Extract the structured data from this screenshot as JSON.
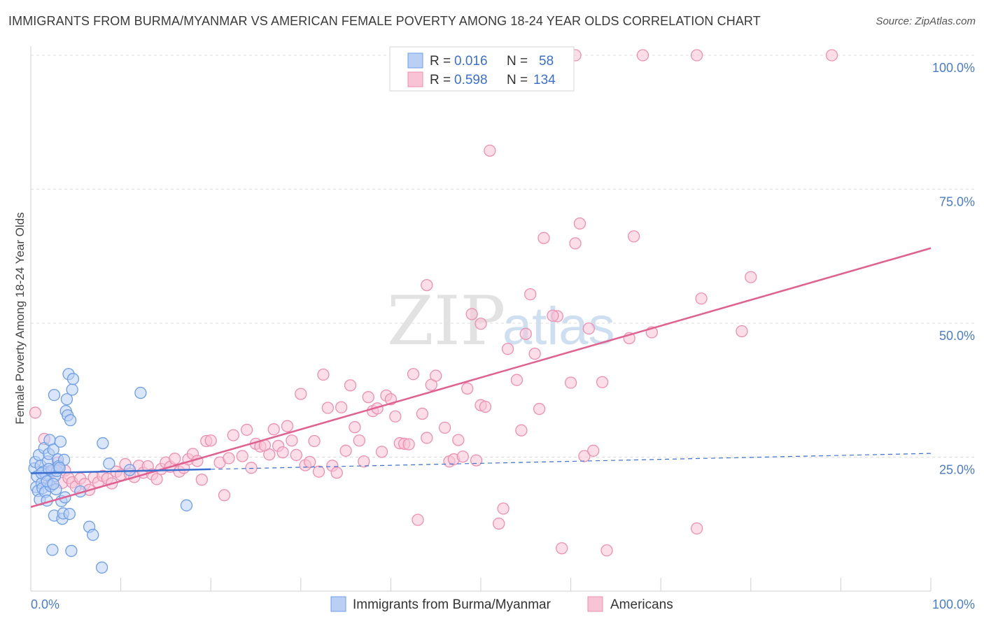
{
  "title": "IMMIGRANTS FROM BURMA/MYANMAR VS AMERICAN FEMALE POVERTY AMONG 18-24 YEAR OLDS CORRELATION CHART",
  "source": "Source: ZipAtlas.com",
  "watermark": {
    "zip": "ZIP",
    "atlas": "atlas"
  },
  "colors": {
    "blue": "#6d9ee8",
    "blue_fill": "#b9d0f4",
    "blue_line": "#3a6fd0",
    "pink": "#ee8fb0",
    "pink_fill": "#f7c3d5",
    "pink_line": "#e0608f",
    "tick_text": "#4a7cc9",
    "grid": "#dedede"
  },
  "chart_data": {
    "type": "scatter",
    "title": "IMMIGRANTS FROM BURMA/MYANMAR VS AMERICAN FEMALE POVERTY AMONG 18-24 YEAR OLDS CORRELATION CHART",
    "xlabel": "",
    "ylabel": "Female Poverty Among 18-24 Year Olds",
    "xlim": [
      0,
      100
    ],
    "ylim": [
      0,
      100
    ],
    "x_ticks": [
      "0.0%",
      "100.0%"
    ],
    "y_ticks": [
      {
        "value": 25,
        "label": "25.0%"
      },
      {
        "value": 50,
        "label": "50.0%"
      },
      {
        "value": 75,
        "label": "75.0%"
      },
      {
        "value": 100,
        "label": "100.0%"
      }
    ],
    "legend": {
      "position": "top-center",
      "entries": [
        {
          "r_label": "R =",
          "r": "0.016",
          "n_label": "N =",
          "n": "58"
        },
        {
          "r_label": "R =",
          "r": "0.598",
          "n_label": "N =",
          "n": "134"
        }
      ]
    },
    "series": [
      {
        "name": "Immigrants from Burma/Myanmar",
        "color": "blue",
        "trend": {
          "x0": 0,
          "y0": 22.0,
          "x1": 100,
          "y1": 25.7,
          "solid_until": 20
        },
        "points": [
          [
            0.4,
            22.9
          ],
          [
            0.6,
            19.4
          ],
          [
            0.5,
            24.1
          ],
          [
            0.7,
            21.4
          ],
          [
            0.8,
            18.7
          ],
          [
            0.9,
            25.4
          ],
          [
            1.0,
            17.1
          ],
          [
            1.1,
            23.4
          ],
          [
            1.2,
            20.1
          ],
          [
            1.3,
            19.2
          ],
          [
            1.4,
            22.3
          ],
          [
            1.5,
            26.7
          ],
          [
            1.6,
            18.5
          ],
          [
            1.7,
            21.7
          ],
          [
            1.8,
            16.9
          ],
          [
            1.9,
            24.2
          ],
          [
            2.0,
            25.6
          ],
          [
            2.1,
            28.2
          ],
          [
            2.2,
            19.6
          ],
          [
            2.3,
            22.5
          ],
          [
            2.4,
            7.7
          ],
          [
            2.5,
            26.4
          ],
          [
            2.6,
            14.1
          ],
          [
            2.7,
            21.5
          ],
          [
            2.8,
            19.0
          ],
          [
            2.9,
            22.4
          ],
          [
            2.6,
            36.6
          ],
          [
            3.0,
            24.6
          ],
          [
            3.1,
            23.3
          ],
          [
            3.3,
            27.9
          ],
          [
            3.4,
            16.8
          ],
          [
            3.5,
            13.5
          ],
          [
            3.6,
            14.5
          ],
          [
            3.7,
            24.5
          ],
          [
            3.8,
            17.5
          ],
          [
            3.9,
            33.6
          ],
          [
            4.0,
            35.8
          ],
          [
            4.1,
            32.8
          ],
          [
            4.2,
            40.5
          ],
          [
            4.3,
            14.4
          ],
          [
            4.4,
            31.9
          ],
          [
            4.5,
            7.5
          ],
          [
            4.6,
            37.6
          ],
          [
            4.7,
            39.6
          ],
          [
            5.5,
            18.6
          ],
          [
            6.5,
            12.0
          ],
          [
            6.9,
            10.5
          ],
          [
            7.9,
            4.4
          ],
          [
            8.0,
            27.6
          ],
          [
            8.7,
            23.8
          ],
          [
            12.2,
            37.0
          ],
          [
            17.3,
            16.0
          ],
          [
            1.2,
            22.0
          ],
          [
            2.0,
            22.8
          ],
          [
            3.2,
            23.0
          ],
          [
            1.8,
            20.5
          ],
          [
            2.5,
            20.0
          ],
          [
            11.0,
            22.6
          ]
        ]
      },
      {
        "name": "Americans",
        "color": "pink",
        "trend": {
          "x0": 0,
          "y0": 15.7,
          "x1": 100,
          "y1": 64.0
        },
        "points": [
          [
            0.5,
            33.3
          ],
          [
            1.5,
            28.4
          ],
          [
            2.0,
            20.0
          ],
          [
            2.5,
            22.3
          ],
          [
            3.0,
            24.0
          ],
          [
            3.5,
            20.2
          ],
          [
            3.8,
            22.5
          ],
          [
            4.2,
            21.1
          ],
          [
            4.6,
            20.3
          ],
          [
            5.0,
            19.5
          ],
          [
            5.5,
            21.0
          ],
          [
            6.0,
            20.0
          ],
          [
            6.5,
            18.9
          ],
          [
            7.0,
            21.2
          ],
          [
            7.5,
            20.3
          ],
          [
            8.0,
            21.5
          ],
          [
            8.5,
            21.0
          ],
          [
            9.0,
            20.1
          ],
          [
            9.5,
            22.3
          ],
          [
            10.0,
            21.7
          ],
          [
            10.5,
            23.7
          ],
          [
            11.0,
            21.9
          ],
          [
            11.5,
            21.3
          ],
          [
            12.0,
            23.4
          ],
          [
            12.5,
            22.1
          ],
          [
            13.0,
            23.3
          ],
          [
            13.5,
            21.8
          ],
          [
            14.0,
            20.9
          ],
          [
            14.5,
            22.8
          ],
          [
            15.0,
            24.0
          ],
          [
            15.5,
            23.2
          ],
          [
            16.0,
            24.7
          ],
          [
            16.5,
            22.3
          ],
          [
            17.0,
            23.0
          ],
          [
            17.5,
            24.6
          ],
          [
            18.0,
            25.6
          ],
          [
            18.5,
            24.3
          ],
          [
            19.0,
            20.8
          ],
          [
            19.5,
            28.0
          ],
          [
            20.0,
            28.1
          ],
          [
            21.0,
            24.0
          ],
          [
            21.5,
            17.9
          ],
          [
            22.0,
            24.8
          ],
          [
            22.5,
            29.1
          ],
          [
            23.5,
            25.2
          ],
          [
            24.0,
            30.1
          ],
          [
            24.5,
            23.0
          ],
          [
            25.0,
            27.5
          ],
          [
            25.5,
            27.0
          ],
          [
            26.0,
            27.2
          ],
          [
            26.5,
            25.5
          ],
          [
            27.0,
            30.2
          ],
          [
            27.5,
            27.1
          ],
          [
            28.0,
            25.9
          ],
          [
            28.5,
            30.8
          ],
          [
            29.0,
            28.1
          ],
          [
            29.5,
            25.4
          ],
          [
            30.0,
            36.8
          ],
          [
            30.5,
            23.5
          ],
          [
            31.0,
            24.1
          ],
          [
            31.5,
            28.0
          ],
          [
            32.0,
            22.3
          ],
          [
            32.5,
            40.4
          ],
          [
            33.0,
            34.2
          ],
          [
            33.5,
            23.4
          ],
          [
            34.0,
            22.1
          ],
          [
            34.5,
            34.3
          ],
          [
            35.0,
            26.2
          ],
          [
            35.5,
            38.4
          ],
          [
            36.0,
            30.6
          ],
          [
            36.5,
            28.1
          ],
          [
            37.0,
            24.2
          ],
          [
            37.5,
            36.2
          ],
          [
            38.0,
            33.6
          ],
          [
            38.5,
            34.1
          ],
          [
            39.0,
            26.0
          ],
          [
            39.5,
            36.5
          ],
          [
            40.0,
            35.8
          ],
          [
            40.5,
            32.6
          ],
          [
            41.0,
            27.6
          ],
          [
            41.5,
            27.5
          ],
          [
            42.0,
            27.4
          ],
          [
            42.5,
            40.5
          ],
          [
            43.0,
            13.3
          ],
          [
            43.5,
            33.1
          ],
          [
            44.0,
            28.6
          ],
          [
            44.5,
            38.5
          ],
          [
            45.0,
            40.2
          ],
          [
            46.0,
            30.5
          ],
          [
            46.5,
            24.2
          ],
          [
            47.0,
            24.6
          ],
          [
            47.5,
            28.2
          ],
          [
            48.0,
            25.1
          ],
          [
            48.5,
            37.8
          ],
          [
            49.0,
            51.7
          ],
          [
            49.5,
            24.4
          ],
          [
            50.0,
            34.7
          ],
          [
            50.5,
            34.4
          ],
          [
            51.0,
            82.2
          ],
          [
            52.0,
            12.6
          ],
          [
            52.5,
            15.4
          ],
          [
            53.0,
            45.2
          ],
          [
            54.0,
            39.4
          ],
          [
            54.5,
            30.0
          ],
          [
            55.0,
            48.0
          ],
          [
            56.0,
            44.3
          ],
          [
            56.5,
            34.0
          ],
          [
            57.0,
            65.9
          ],
          [
            58.5,
            51.3
          ],
          [
            59.0,
            8.0
          ],
          [
            60.0,
            38.9
          ],
          [
            60.5,
            64.9
          ],
          [
            61.0,
            68.6
          ],
          [
            61.5,
            25.2
          ],
          [
            62.0,
            49.0
          ],
          [
            62.5,
            26.2
          ],
          [
            63.5,
            39.0
          ],
          [
            64.0,
            7.6
          ],
          [
            66.5,
            47.2
          ],
          [
            67.0,
            66.2
          ],
          [
            69.0,
            48.3
          ],
          [
            74.0,
            11.7
          ],
          [
            74.5,
            54.6
          ],
          [
            79.0,
            48.5
          ],
          [
            80.0,
            58.6
          ],
          [
            55.5,
            55.4
          ],
          [
            58.0,
            51.4
          ],
          [
            50.0,
            49.9
          ],
          [
            44.0,
            57.1
          ],
          [
            60.5,
            100.0
          ],
          [
            68.0,
            100.0
          ],
          [
            74.0,
            100.0
          ],
          [
            89.0,
            100.0
          ]
        ]
      }
    ]
  }
}
